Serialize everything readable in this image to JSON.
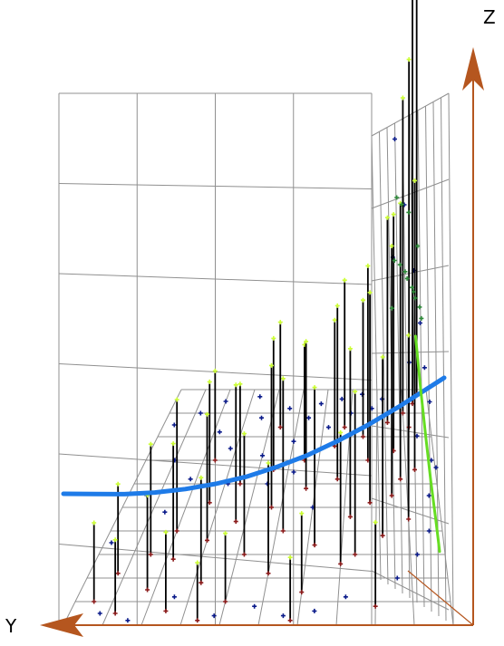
{
  "chart_data": {
    "type": "scatter",
    "title": "",
    "xlabel": "",
    "ylabel": "Y",
    "zlabel": "Z",
    "view": "3d-oblique",
    "grid": true,
    "legend": "none",
    "colors": {
      "axes": "#b5561f",
      "grid": "#909090",
      "stem": "#000000",
      "point_above": "#ccff33",
      "point_base": "#8b1a1a",
      "point_cloud": "#0a1a8a",
      "point_right": "#2f8a3a",
      "curve_blue": "#1e7be8",
      "curve_green": "#66dd22"
    },
    "stems": [
      {
        "x": 0.05,
        "y": 0.1,
        "z": 0.3
      },
      {
        "x": 0.08,
        "y": 0.22,
        "z": 0.34
      },
      {
        "x": 0.12,
        "y": 0.05,
        "z": 0.28
      },
      {
        "x": 0.15,
        "y": 0.3,
        "z": 0.42
      },
      {
        "x": 0.18,
        "y": 0.15,
        "z": 0.36
      },
      {
        "x": 0.2,
        "y": 0.4,
        "z": 0.5
      },
      {
        "x": 0.22,
        "y": 0.28,
        "z": 0.44
      },
      {
        "x": 0.25,
        "y": 0.06,
        "z": 0.3
      },
      {
        "x": 0.27,
        "y": 0.52,
        "z": 0.46
      },
      {
        "x": 0.3,
        "y": 0.36,
        "z": 0.48
      },
      {
        "x": 0.32,
        "y": 0.18,
        "z": 0.4
      },
      {
        "x": 0.35,
        "y": 0.6,
        "z": 0.38
      },
      {
        "x": 0.37,
        "y": 0.44,
        "z": 0.52
      },
      {
        "x": 0.4,
        "y": 0.1,
        "z": 0.26
      },
      {
        "x": 0.42,
        "y": 0.3,
        "z": 0.46
      },
      {
        "x": 0.45,
        "y": 0.66,
        "z": 0.5
      },
      {
        "x": 0.47,
        "y": 0.5,
        "z": 0.54
      },
      {
        "x": 0.5,
        "y": 0.22,
        "z": 0.42
      },
      {
        "x": 0.52,
        "y": 0.4,
        "z": 0.58
      },
      {
        "x": 0.55,
        "y": 0.7,
        "z": 0.44
      },
      {
        "x": 0.57,
        "y": 0.58,
        "z": 0.56
      },
      {
        "x": 0.6,
        "y": 0.14,
        "z": 0.3
      },
      {
        "x": 0.62,
        "y": 0.34,
        "z": 0.6
      },
      {
        "x": 0.65,
        "y": 0.76,
        "z": 0.48
      },
      {
        "x": 0.67,
        "y": 0.62,
        "z": 0.66
      },
      {
        "x": 0.7,
        "y": 0.26,
        "z": 0.5
      },
      {
        "x": 0.72,
        "y": 0.46,
        "z": 0.64
      },
      {
        "x": 0.75,
        "y": 0.8,
        "z": 0.52
      },
      {
        "x": 0.77,
        "y": 0.7,
        "z": 0.74
      },
      {
        "x": 0.8,
        "y": 0.08,
        "z": 0.32
      },
      {
        "x": 0.82,
        "y": 0.38,
        "z": 0.68
      },
      {
        "x": 0.84,
        "y": 0.86,
        "z": 0.78
      },
      {
        "x": 0.86,
        "y": 0.74,
        "z": 0.9
      },
      {
        "x": 0.88,
        "y": 0.62,
        "z": 1.05
      },
      {
        "x": 0.9,
        "y": 0.9,
        "z": 1.2
      },
      {
        "x": 0.92,
        "y": 0.84,
        "z": 1.4
      },
      {
        "x": 0.94,
        "y": 0.94,
        "z": 1.55
      },
      {
        "x": 0.96,
        "y": 0.98,
        "z": 1.7
      },
      {
        "x": 0.58,
        "y": 0.02,
        "z": 0.24
      },
      {
        "x": 0.34,
        "y": 0.02,
        "z": 0.22
      },
      {
        "x": 0.78,
        "y": 0.52,
        "z": 0.8
      },
      {
        "x": 0.85,
        "y": 0.55,
        "z": 0.95
      },
      {
        "x": 0.9,
        "y": 0.45,
        "z": 0.7
      },
      {
        "x": 0.93,
        "y": 0.66,
        "z": 1.1
      },
      {
        "x": 0.68,
        "y": 0.84,
        "z": 0.56
      },
      {
        "x": 0.44,
        "y": 0.84,
        "z": 0.4
      },
      {
        "x": 0.24,
        "y": 0.7,
        "z": 0.34
      },
      {
        "x": 0.74,
        "y": 0.3,
        "z": 0.62
      }
    ],
    "cloud_points": [
      {
        "x": 0.02,
        "y": 0.35
      },
      {
        "x": 0.06,
        "y": 0.55
      },
      {
        "x": 0.1,
        "y": 0.7
      },
      {
        "x": 0.14,
        "y": 0.48
      },
      {
        "x": 0.18,
        "y": 0.62
      },
      {
        "x": 0.22,
        "y": 0.82
      },
      {
        "x": 0.28,
        "y": 0.75
      },
      {
        "x": 0.31,
        "y": 0.6
      },
      {
        "x": 0.36,
        "y": 0.88
      },
      {
        "x": 0.4,
        "y": 0.72
      },
      {
        "x": 0.46,
        "y": 0.92
      },
      {
        "x": 0.5,
        "y": 0.78
      },
      {
        "x": 0.54,
        "y": 0.88
      },
      {
        "x": 0.58,
        "y": 0.94
      },
      {
        "x": 0.62,
        "y": 0.84
      },
      {
        "x": 0.66,
        "y": 0.96
      },
      {
        "x": 0.7,
        "y": 0.9
      },
      {
        "x": 0.74,
        "y": 0.98
      },
      {
        "x": 0.78,
        "y": 0.92
      },
      {
        "x": 0.82,
        "y": 0.96
      },
      {
        "x": 0.08,
        "y": 0.05
      },
      {
        "x": 0.16,
        "y": 0.02
      },
      {
        "x": 0.26,
        "y": 0.12
      },
      {
        "x": 0.38,
        "y": 0.04
      },
      {
        "x": 0.48,
        "y": 0.08
      },
      {
        "x": 0.56,
        "y": 0.04
      },
      {
        "x": 0.64,
        "y": 0.06
      },
      {
        "x": 0.72,
        "y": 0.12
      },
      {
        "x": 0.86,
        "y": 0.2
      },
      {
        "x": 0.92,
        "y": 0.3
      },
      {
        "x": 0.96,
        "y": 0.4
      },
      {
        "x": 0.97,
        "y": 0.55
      },
      {
        "x": 0.99,
        "y": 0.7
      },
      {
        "x": 0.6,
        "y": 0.5
      },
      {
        "x": 0.44,
        "y": 0.6
      },
      {
        "x": 0.12,
        "y": 0.9
      },
      {
        "x": 0.2,
        "y": 0.95
      },
      {
        "x": 0.33,
        "y": 0.97
      },
      {
        "x": 0.04,
        "y": 0.85
      },
      {
        "x": 0.52,
        "y": 0.65
      }
    ],
    "wall_points": [
      {
        "y": 0.15,
        "z": 1.85
      },
      {
        "y": 0.3,
        "z": 1.6
      },
      {
        "y": 0.45,
        "z": 1.35
      },
      {
        "y": 0.55,
        "z": 1.15
      },
      {
        "y": 0.62,
        "z": 0.98
      },
      {
        "y": 0.7,
        "z": 0.85
      },
      {
        "y": 0.12,
        "z": 1.4
      },
      {
        "y": 0.38,
        "z": 1.0
      },
      {
        "y": 0.5,
        "z": 0.72
      },
      {
        "y": 0.8,
        "z": 0.6
      }
    ],
    "right_points": [
      {
        "x": 0.86,
        "y": 0.6,
        "z": 0.85
      },
      {
        "x": 0.88,
        "y": 0.66,
        "z": 0.78
      },
      {
        "x": 0.9,
        "y": 0.72,
        "z": 0.7
      },
      {
        "x": 0.91,
        "y": 0.78,
        "z": 0.62
      },
      {
        "x": 0.93,
        "y": 0.82,
        "z": 0.55
      },
      {
        "x": 0.94,
        "y": 0.88,
        "z": 0.48
      },
      {
        "x": 0.95,
        "y": 0.92,
        "z": 0.42
      },
      {
        "x": 0.97,
        "y": 0.96,
        "z": 0.35
      },
      {
        "x": 0.87,
        "y": 0.7,
        "z": 1.0
      },
      {
        "x": 0.89,
        "y": 0.76,
        "z": 0.92
      },
      {
        "x": 0.92,
        "y": 0.86,
        "z": 0.8
      },
      {
        "x": 0.96,
        "y": 0.94,
        "z": 0.6
      },
      {
        "x": 0.85,
        "y": 0.52,
        "z": 0.74
      },
      {
        "x": 0.98,
        "y": 0.99,
        "z": 0.28
      }
    ],
    "curve_blue": [
      {
        "u": 0.0,
        "v": 0.55
      },
      {
        "u": 0.08,
        "v": 0.48
      },
      {
        "u": 0.16,
        "v": 0.41
      },
      {
        "u": 0.24,
        "v": 0.36
      },
      {
        "u": 0.32,
        "v": 0.33
      },
      {
        "u": 0.4,
        "v": 0.32
      },
      {
        "u": 0.48,
        "v": 0.33
      },
      {
        "u": 0.56,
        "v": 0.37
      },
      {
        "u": 0.64,
        "v": 0.43
      },
      {
        "u": 0.72,
        "v": 0.52
      },
      {
        "u": 0.8,
        "v": 0.63
      },
      {
        "u": 0.88,
        "v": 0.76
      },
      {
        "u": 1.0,
        "v": 0.98
      }
    ],
    "curve_green": [
      {
        "y": 0.62,
        "z": 1.1
      },
      {
        "y": 0.7,
        "z": 0.9
      },
      {
        "y": 0.78,
        "z": 0.72
      },
      {
        "y": 0.86,
        "z": 0.55
      },
      {
        "y": 0.94,
        "z": 0.4
      },
      {
        "y": 1.0,
        "z": 0.28
      }
    ],
    "axes": {
      "y_label": "Y",
      "z_label": "Z"
    }
  }
}
